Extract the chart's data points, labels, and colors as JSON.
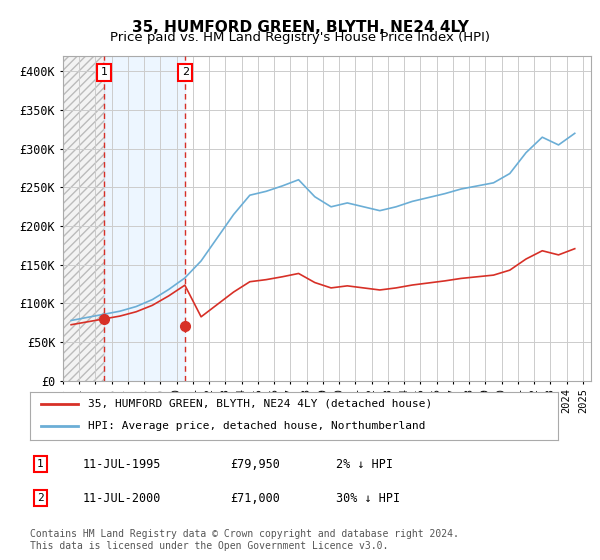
{
  "title": "35, HUMFORD GREEN, BLYTH, NE24 4LY",
  "subtitle": "Price paid vs. HM Land Registry's House Price Index (HPI)",
  "title_fontsize": 11,
  "subtitle_fontsize": 9.5,
  "ylabel_ticks": [
    "£0",
    "£50K",
    "£100K",
    "£150K",
    "£200K",
    "£250K",
    "£300K",
    "£350K",
    "£400K"
  ],
  "ytick_vals": [
    0,
    50000,
    100000,
    150000,
    200000,
    250000,
    300000,
    350000,
    400000
  ],
  "ylim": [
    0,
    420000
  ],
  "xlim_start": 1993.0,
  "xlim_end": 2025.5,
  "sale1_date": 1995.53,
  "sale1_price": 79950,
  "sale2_date": 2000.53,
  "sale2_price": 71000,
  "hpi_color": "#6baed6",
  "price_color": "#d73027",
  "hatch_region_end": 1995.53,
  "legend_label1": "35, HUMFORD GREEN, BLYTH, NE24 4LY (detached house)",
  "legend_label2": "HPI: Average price, detached house, Northumberland",
  "table_row1": [
    "1",
    "11-JUL-1995",
    "£79,950",
    "2% ↓ HPI"
  ],
  "table_row2": [
    "2",
    "11-JUL-2000",
    "£71,000",
    "30% ↓ HPI"
  ],
  "footer": "Contains HM Land Registry data © Crown copyright and database right 2024.\nThis data is licensed under the Open Government Licence v3.0.",
  "background_color": "#ffffff",
  "grid_color": "#cccccc",
  "hatch_color": "#dddddd"
}
